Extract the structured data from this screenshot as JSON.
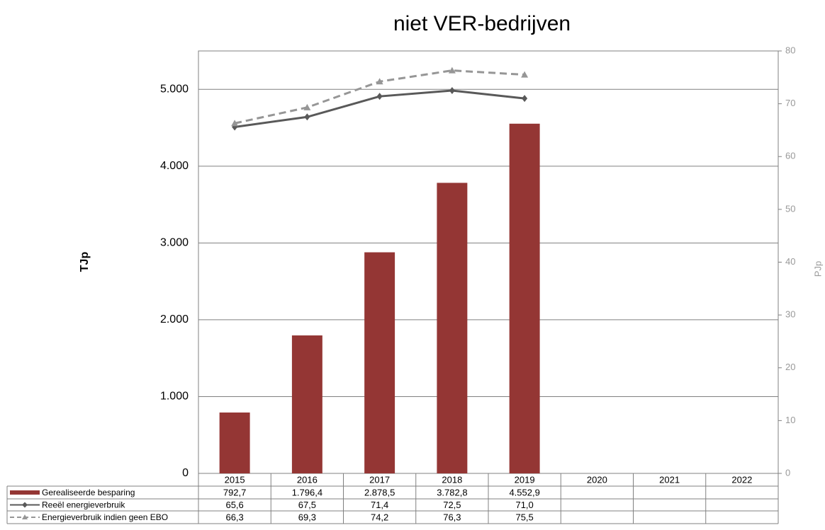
{
  "chart_data": {
    "type": "bar",
    "title": "niet VER-bedrijven",
    "y_label": "TJp",
    "y2_label": "PJp",
    "categories": [
      "2015",
      "2016",
      "2017",
      "2018",
      "2019",
      "2020",
      "2021",
      "2022"
    ],
    "ylim": [
      0,
      5500
    ],
    "yticks": [
      0,
      {
        "value": 1000,
        "label": "1.000"
      },
      {
        "value": 2000,
        "label": "2.000"
      },
      {
        "value": 3000,
        "label": "3.000"
      },
      {
        "value": 4000,
        "label": "4.000"
      },
      {
        "value": 5000,
        "label": "5.000"
      }
    ],
    "y2lim": [
      0,
      80
    ],
    "y2ticks": [
      0,
      10,
      20,
      30,
      40,
      50,
      60,
      70,
      80
    ],
    "grid": true,
    "series": [
      {
        "name": "Gerealiseerde besparing",
        "type": "bar",
        "color": "#943634",
        "values": [
          792.7,
          1796.4,
          2878.5,
          3782.8,
          4552.9,
          null,
          null,
          null
        ],
        "value_labels": [
          "792,7",
          "1.796,4",
          "2.878,5",
          "3.782,8",
          "4.552,9",
          null,
          null,
          null
        ]
      },
      {
        "name": "Reeël energieverbruik",
        "type": "line",
        "axis": "y2",
        "color": "#595959",
        "marker": "diamond",
        "values": [
          65.6,
          67.5,
          71.4,
          72.5,
          71.0,
          null,
          null,
          null
        ],
        "value_labels": [
          "65,6",
          "67,5",
          "71,4",
          "72,5",
          "71,0",
          null,
          null,
          null
        ]
      },
      {
        "name": "Energieverbruik indien geen EBO",
        "type": "line",
        "axis": "y2",
        "color": "#969696",
        "marker": "triangle",
        "dashed": true,
        "values": [
          66.3,
          69.3,
          74.2,
          76.3,
          75.5,
          null,
          null,
          null
        ],
        "value_labels": [
          "66,3",
          "69,3",
          "74,2",
          "76,3",
          "75,5",
          null,
          null,
          null
        ]
      }
    ]
  }
}
